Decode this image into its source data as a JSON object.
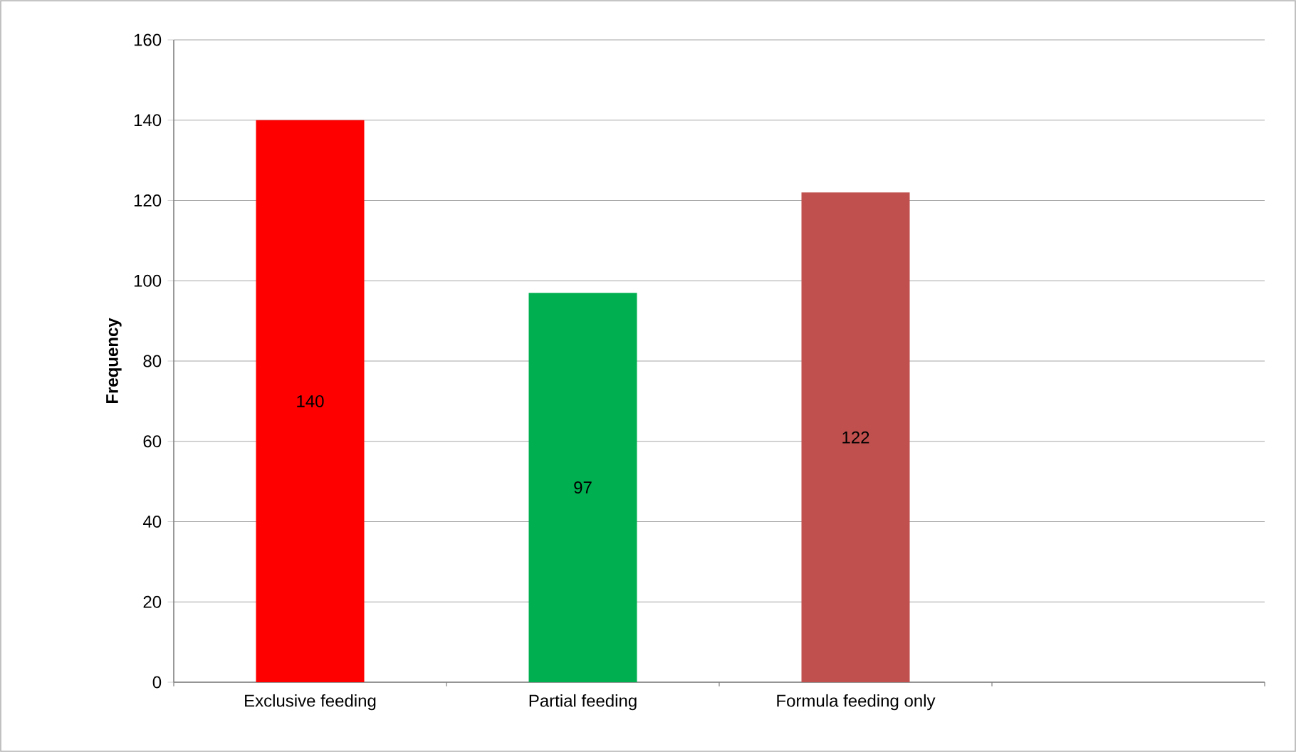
{
  "chart_data": {
    "type": "bar",
    "ylabel": "Frequency",
    "categories": [
      "Exclusive feeding",
      "Partial feeding",
      "Formula feeding only",
      null
    ],
    "values": [
      140,
      97,
      122,
      null
    ],
    "colors": [
      "#ff0000",
      "#00b050",
      "#c0504d",
      null
    ],
    "ylim": [
      0,
      160
    ],
    "yticks": [
      0,
      20,
      40,
      60,
      80,
      100,
      120,
      140,
      160
    ],
    "grid": "y",
    "data_labels": true
  }
}
